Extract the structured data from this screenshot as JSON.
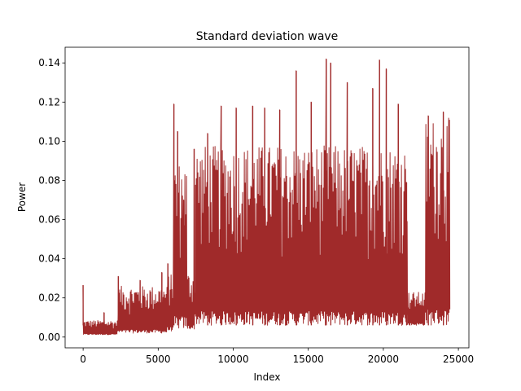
{
  "chart_data": {
    "type": "line",
    "title": "Standard deviation wave",
    "xlabel": "Index",
    "ylabel": "Power",
    "xlim": [
      -1200,
      25700
    ],
    "ylim": [
      -0.0055,
      0.148
    ],
    "xticks": [
      0,
      5000,
      10000,
      15000,
      20000,
      25000
    ],
    "xtick_labels": [
      "0",
      "5000",
      "10000",
      "15000",
      "20000",
      "25000"
    ],
    "yticks": [
      0.0,
      0.02,
      0.04,
      0.06,
      0.08,
      0.1,
      0.12,
      0.14
    ],
    "ytick_labels": [
      "0.00",
      "0.02",
      "0.04",
      "0.06",
      "0.08",
      "0.10",
      "0.12",
      "0.14"
    ],
    "grid": false,
    "legend": "none",
    "series": [
      {
        "color": "#a02a2a",
        "x_range": [
          0,
          24450
        ],
        "segments": [
          {
            "x": [
              0,
              2300
            ],
            "low": 0.0012,
            "high": 0.0085
          },
          {
            "x": [
              2300,
              5600
            ],
            "low": 0.002,
            "high": 0.026
          },
          {
            "x": [
              5600,
              6000
            ],
            "low": 0.003,
            "high": 0.032
          },
          {
            "x": [
              6000,
              6900
            ],
            "low": 0.004,
            "high": 0.09
          },
          {
            "x": [
              6900,
              7450
            ],
            "low": 0.004,
            "high": 0.033
          },
          {
            "x": [
              7450,
              21600
            ],
            "low": 0.006,
            "high": 0.098
          },
          {
            "x": [
              21600,
              22800
            ],
            "low": 0.006,
            "high": 0.023
          },
          {
            "x": [
              22800,
              24450
            ],
            "low": 0.006,
            "high": 0.112
          }
        ],
        "peaks": [
          {
            "x": 0,
            "y": 0.0265
          },
          {
            "x": 1400,
            "y": 0.0125
          },
          {
            "x": 2350,
            "y": 0.031
          },
          {
            "x": 3800,
            "y": 0.029
          },
          {
            "x": 5250,
            "y": 0.033
          },
          {
            "x": 5650,
            "y": 0.0375
          },
          {
            "x": 6050,
            "y": 0.119
          },
          {
            "x": 6300,
            "y": 0.105
          },
          {
            "x": 6700,
            "y": 0.07
          },
          {
            "x": 7400,
            "y": 0.096
          },
          {
            "x": 8300,
            "y": 0.104
          },
          {
            "x": 9200,
            "y": 0.118
          },
          {
            "x": 10200,
            "y": 0.117
          },
          {
            "x": 11300,
            "y": 0.118
          },
          {
            "x": 12100,
            "y": 0.117
          },
          {
            "x": 13100,
            "y": 0.116
          },
          {
            "x": 14200,
            "y": 0.136
          },
          {
            "x": 15200,
            "y": 0.12
          },
          {
            "x": 16200,
            "y": 0.142
          },
          {
            "x": 16500,
            "y": 0.14
          },
          {
            "x": 17600,
            "y": 0.13
          },
          {
            "x": 19300,
            "y": 0.127
          },
          {
            "x": 19750,
            "y": 0.1415
          },
          {
            "x": 20200,
            "y": 0.137
          },
          {
            "x": 21000,
            "y": 0.119
          },
          {
            "x": 21550,
            "y": 0.079
          },
          {
            "x": 23000,
            "y": 0.113
          },
          {
            "x": 24000,
            "y": 0.115
          }
        ]
      }
    ]
  }
}
